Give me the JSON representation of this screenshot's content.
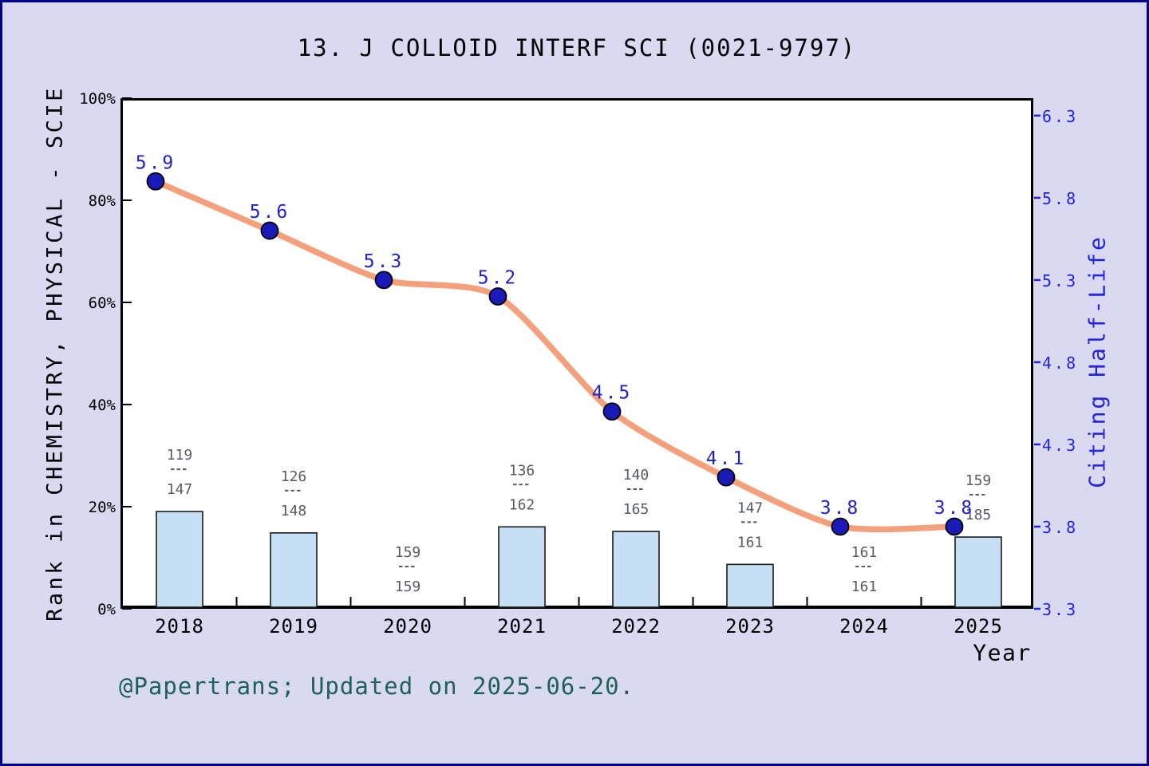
{
  "footer": {
    "credit": "@Papertrans; Updated on 2025-06-20."
  },
  "chart_data": {
    "type": "line+bar",
    "title": "13. J COLLOID INTERF SCI (0021-9797)",
    "xlabel": "Year",
    "categories": [
      2018,
      2019,
      2020,
      2021,
      2022,
      2023,
      2024,
      2025
    ],
    "left_axis": {
      "label": "Rank in CHEMISTRY, PHYSICAL - SCIE",
      "tick_labels": [
        "0%",
        "20%",
        "40%",
        "60%",
        "80%",
        "100%"
      ],
      "range": [
        0,
        100
      ],
      "grid": false
    },
    "right_axis": {
      "label": "Citing Half-Life",
      "tick_labels": [
        "3.3",
        "3.8",
        "4.3",
        "4.8",
        "5.3",
        "5.8",
        "6.3"
      ],
      "range": [
        3.3,
        6.3
      ]
    },
    "series": [
      {
        "name": "Citing Half-Life",
        "type": "line",
        "axis": "right",
        "values": [
          5.9,
          5.6,
          5.3,
          5.2,
          4.5,
          4.1,
          3.8,
          3.8
        ],
        "point_labels": [
          "5.9",
          "5.6",
          "5.3",
          "5.2",
          "4.5",
          "4.1",
          "3.8",
          "3.8"
        ],
        "line_color": "#f5a07c",
        "marker_color": "#1a1ab8",
        "label_color": "#2222cc"
      },
      {
        "name": "Rank",
        "type": "bar",
        "axis": "left",
        "fractions": [
          {
            "numerator": "119",
            "denominator": "147"
          },
          {
            "numerator": "126",
            "denominator": "148"
          },
          {
            "numerator": "159",
            "denominator": "159"
          },
          {
            "numerator": "136",
            "denominator": "162"
          },
          {
            "numerator": "140",
            "denominator": "165"
          },
          {
            "numerator": "147",
            "denominator": "161"
          },
          {
            "numerator": "161",
            "denominator": "161"
          },
          {
            "numerator": "159",
            "denominator": "185"
          }
        ],
        "bar_percent": [
          19.0,
          14.9,
          0.0,
          16.0,
          15.2,
          8.7,
          0.0,
          14.1
        ],
        "bar_color": "#c7dff4",
        "bar_border_color": "#1a1a1a",
        "label_color": "#585c60"
      }
    ]
  },
  "colors": {
    "background": "#d9d9f2",
    "plot_background": "#ffffff",
    "frame": "#000000",
    "outer_border": "#00008b",
    "right_axis_color": "#2323e6",
    "footer_color": "#1e6158"
  }
}
